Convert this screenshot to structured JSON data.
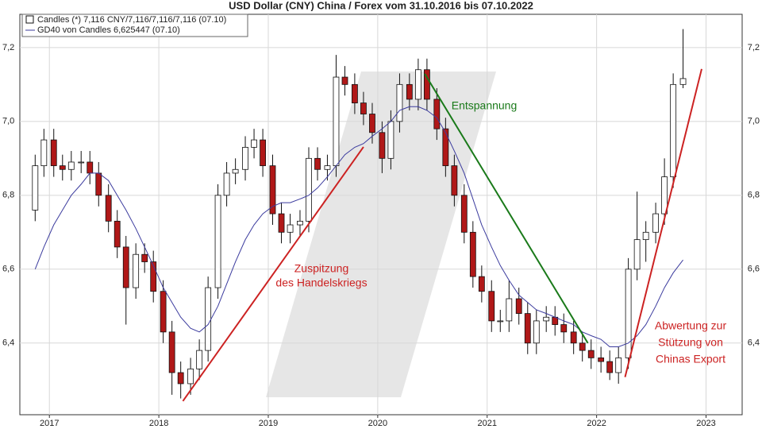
{
  "chart_data": {
    "type": "candlestick",
    "title": "USD Dollar (CNY) China / Forex vom 31.10.2016 bis 07.10.2022",
    "x": [
      2016.87,
      2016.95,
      2017.04,
      2017.12,
      2017.2,
      2017.29,
      2017.37,
      2017.45,
      2017.54,
      2017.62,
      2017.7,
      2017.79,
      2017.87,
      2017.95,
      2018.04,
      2018.12,
      2018.2,
      2018.29,
      2018.37,
      2018.45,
      2018.54,
      2018.62,
      2018.7,
      2018.79,
      2018.87,
      2018.95,
      2019.04,
      2019.12,
      2019.2,
      2019.29,
      2019.37,
      2019.45,
      2019.54,
      2019.62,
      2019.7,
      2019.79,
      2019.87,
      2019.95,
      2020.04,
      2020.12,
      2020.2,
      2020.29,
      2020.37,
      2020.45,
      2020.54,
      2020.62,
      2020.7,
      2020.79,
      2020.87,
      2020.95,
      2021.04,
      2021.12,
      2021.2,
      2021.29,
      2021.37,
      2021.45,
      2021.54,
      2021.62,
      2021.7,
      2021.79,
      2021.87,
      2021.95,
      2022.04,
      2022.12,
      2022.2,
      2022.29,
      2022.37,
      2022.45,
      2022.54,
      2022.62,
      2022.7,
      2022.79
    ],
    "series": [
      {
        "name": "Candles (*) 7,116 CNY/7,116/7,116/7,116 (07.10)",
        "type": "candlestick",
        "color_up": "#ffffff",
        "color_down": "#b01818",
        "open": [
          6.76,
          6.88,
          6.95,
          6.88,
          6.87,
          6.89,
          6.89,
          6.86,
          6.8,
          6.73,
          6.66,
          6.55,
          6.64,
          6.62,
          6.54,
          6.43,
          6.32,
          6.29,
          6.33,
          6.38,
          6.55,
          6.8,
          6.86,
          6.87,
          6.93,
          6.95,
          6.88,
          6.75,
          6.7,
          6.72,
          6.73,
          6.9,
          6.87,
          6.88,
          7.12,
          7.1,
          7.05,
          7.02,
          6.97,
          6.9,
          7.0,
          7.1,
          7.06,
          7.14,
          7.06,
          6.98,
          6.88,
          6.8,
          6.7,
          6.58,
          6.54,
          6.46,
          6.46,
          6.52,
          6.48,
          6.4,
          6.46,
          6.47,
          6.45,
          6.43,
          6.4,
          6.38,
          6.36,
          6.35,
          6.32,
          6.36,
          6.6,
          6.68,
          6.7,
          6.75,
          6.85,
          7.1
        ],
        "high": [
          6.91,
          6.98,
          6.98,
          6.91,
          6.92,
          6.92,
          6.92,
          6.89,
          6.83,
          6.76,
          6.69,
          6.67,
          6.67,
          6.65,
          6.57,
          6.46,
          6.35,
          6.36,
          6.41,
          6.58,
          6.83,
          6.89,
          6.9,
          6.96,
          6.98,
          6.98,
          6.91,
          6.78,
          6.75,
          6.76,
          6.93,
          6.93,
          6.91,
          7.18,
          7.15,
          7.13,
          7.08,
          7.05,
          7.0,
          7.03,
          7.13,
          7.13,
          7.17,
          7.17,
          7.09,
          7.01,
          6.91,
          6.83,
          6.73,
          6.61,
          6.57,
          6.49,
          6.57,
          6.55,
          6.51,
          6.49,
          6.5,
          6.5,
          6.48,
          6.46,
          6.43,
          6.41,
          6.39,
          6.38,
          6.39,
          6.63,
          6.81,
          6.73,
          6.78,
          6.9,
          7.13,
          7.25
        ],
        "low": [
          6.73,
          6.85,
          6.85,
          6.84,
          6.84,
          6.86,
          6.83,
          6.77,
          6.7,
          6.63,
          6.45,
          6.52,
          6.59,
          6.51,
          6.4,
          6.26,
          6.25,
          6.26,
          6.3,
          6.35,
          6.52,
          6.77,
          6.83,
          6.84,
          6.9,
          6.85,
          6.72,
          6.67,
          6.67,
          6.69,
          6.7,
          6.84,
          6.84,
          6.85,
          7.07,
          7.02,
          6.99,
          6.94,
          6.86,
          6.87,
          6.97,
          7.03,
          7.03,
          7.03,
          6.95,
          6.85,
          6.77,
          6.67,
          6.55,
          6.51,
          6.43,
          6.43,
          6.43,
          6.45,
          6.37,
          6.37,
          6.43,
          6.42,
          6.4,
          6.37,
          6.35,
          6.33,
          6.32,
          6.3,
          6.29,
          6.33,
          6.57,
          6.62,
          6.67,
          6.72,
          6.82,
          7.09
        ],
        "close": [
          6.88,
          6.95,
          6.88,
          6.87,
          6.89,
          6.89,
          6.86,
          6.8,
          6.73,
          6.66,
          6.55,
          6.64,
          6.62,
          6.54,
          6.43,
          6.32,
          6.29,
          6.33,
          6.38,
          6.55,
          6.8,
          6.86,
          6.87,
          6.93,
          6.95,
          6.88,
          6.75,
          6.7,
          6.72,
          6.73,
          6.9,
          6.87,
          6.88,
          7.12,
          7.1,
          7.05,
          7.02,
          6.97,
          6.9,
          7.0,
          7.1,
          7.06,
          7.14,
          7.06,
          6.98,
          6.88,
          6.8,
          6.7,
          6.58,
          6.54,
          6.46,
          6.46,
          6.52,
          6.48,
          6.4,
          6.46,
          6.47,
          6.45,
          6.43,
          6.4,
          6.38,
          6.36,
          6.35,
          6.32,
          6.36,
          6.6,
          6.68,
          6.7,
          6.75,
          6.85,
          7.1,
          7.116
        ]
      },
      {
        "name": "GD40 von Candles 6,625447 (07.10)",
        "type": "line",
        "color": "#3b3b9e",
        "values": [
          6.6,
          6.66,
          6.72,
          6.76,
          6.8,
          6.83,
          6.86,
          6.86,
          6.84,
          6.8,
          6.76,
          6.71,
          6.66,
          6.61,
          6.55,
          6.51,
          6.47,
          6.44,
          6.43,
          6.45,
          6.5,
          6.56,
          6.62,
          6.68,
          6.72,
          6.75,
          6.77,
          6.78,
          6.78,
          6.79,
          6.8,
          6.82,
          6.85,
          6.88,
          6.91,
          6.93,
          6.94,
          6.96,
          6.98,
          7.0,
          7.03,
          7.04,
          7.04,
          7.03,
          7.01,
          6.97,
          6.92,
          6.86,
          6.79,
          6.72,
          6.66,
          6.61,
          6.57,
          6.53,
          6.51,
          6.49,
          6.48,
          6.47,
          6.46,
          6.45,
          6.43,
          6.42,
          6.41,
          6.39,
          6.39,
          6.4,
          6.42,
          6.45,
          6.5,
          6.55,
          6.59,
          6.625
        ]
      }
    ],
    "xlim": [
      2016.73,
      2023.33
    ],
    "xticks": [
      2017,
      2018,
      2019,
      2020,
      2021,
      2022,
      2023
    ],
    "ylim": [
      6.206,
      7.29
    ],
    "yticks": [
      {
        "value": 6.4,
        "label": "6,4"
      },
      {
        "value": 6.6,
        "label": "6,6"
      },
      {
        "value": 6.8,
        "label": "6,8"
      },
      {
        "value": 7.0,
        "label": "7,0"
      },
      {
        "value": 7.2,
        "label": "7,2"
      }
    ],
    "grid": true,
    "legend": "upper left",
    "trendlines": [
      {
        "color": "#cc2222",
        "x": [
          2018.22,
          2019.87
        ],
        "y": [
          6.243,
          6.931
        ]
      },
      {
        "color": "#1a7a1a",
        "x": [
          2020.43,
          2021.92
        ],
        "y": [
          7.129,
          6.4
        ]
      },
      {
        "color": "#cc2222",
        "x": [
          2022.26,
          2022.96
        ],
        "y": [
          6.308,
          7.142
        ]
      }
    ],
    "annotations": [
      {
        "color": "#1a7a1a",
        "lines": [
          "Entspannung"
        ]
      },
      {
        "color": "#cc2222",
        "lines": [
          "Zuspitzung",
          "des Handelskriegs"
        ]
      },
      {
        "color": "#cc2222",
        "lines": [
          "Abwertung zur",
          "Stützung von",
          "Chinas Export"
        ]
      }
    ]
  }
}
